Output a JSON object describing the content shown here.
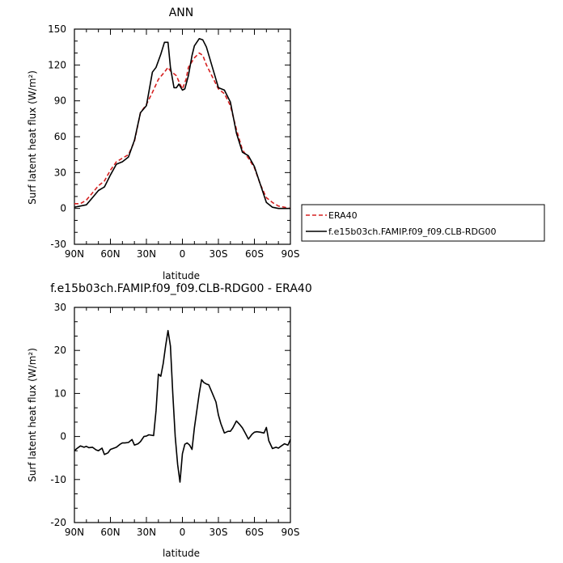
{
  "chart_data": [
    {
      "type": "line",
      "title": "ANN",
      "xlabel": "latitude",
      "ylabel": "Surf latent heat flux (W/m²)",
      "xlim": [
        90,
        -90
      ],
      "ylim": [
        -30,
        150
      ],
      "yticks": [
        -30,
        0,
        30,
        60,
        90,
        120,
        150
      ],
      "xticks": [
        90,
        60,
        30,
        0,
        -30,
        -60,
        -90
      ],
      "xticklabels": [
        "90N",
        "60N",
        "30N",
        "0",
        "30S",
        "60S",
        "90S"
      ],
      "legend_placement": "right",
      "series": [
        {
          "name": "ERA40",
          "color": "#d62020",
          "style": "dashed",
          "x": [
            90,
            85,
            80,
            75,
            70,
            65,
            60,
            55,
            50,
            45,
            40,
            35,
            30,
            25,
            20,
            15,
            12,
            10,
            5,
            2,
            0,
            -3,
            -5,
            -10,
            -14,
            -17,
            -20,
            -25,
            -30,
            -35,
            -40,
            -45,
            -50,
            -55,
            -60,
            -65,
            -70,
            -75,
            -80,
            -85,
            -90
          ],
          "y": [
            4,
            4,
            7,
            13,
            19,
            23,
            32,
            39,
            42,
            45,
            56,
            80,
            87,
            97,
            108,
            114,
            118,
            115,
            111,
            104,
            100,
            108,
            118,
            126,
            130,
            128,
            120,
            110,
            100,
            96,
            86,
            66,
            49,
            42,
            34,
            20,
            9,
            5,
            2,
            1,
            0
          ]
        },
        {
          "name": "f.e15b03ch.FAMIP.f09_f09.CLB-RDG00",
          "color": "#000000",
          "style": "solid",
          "x": [
            90,
            85,
            80,
            75,
            70,
            65,
            60,
            55,
            50,
            45,
            40,
            35,
            30,
            25,
            22,
            18,
            15,
            12,
            10,
            7,
            5,
            3,
            0,
            -2,
            -5,
            -8,
            -10,
            -14,
            -17,
            -20,
            -25,
            -30,
            -35,
            -40,
            -45,
            -50,
            -55,
            -60,
            -65,
            -70,
            -75,
            -80,
            -85,
            -90
          ],
          "y": [
            1,
            2,
            3,
            9,
            15,
            18,
            28,
            37,
            39,
            43,
            57,
            80,
            86,
            114,
            118,
            129,
            139,
            139,
            118,
            101,
            101,
            104,
            99,
            100,
            111,
            128,
            136,
            142,
            141,
            135,
            118,
            101,
            99,
            89,
            63,
            47,
            44,
            35,
            20,
            5,
            1,
            0,
            0,
            0
          ]
        }
      ]
    },
    {
      "type": "line",
      "title": "f.e15b03ch.FAMIP.f09_f09.CLB-RDG00 - ERA40",
      "xlabel": "latitude",
      "ylabel": "Surf latent heat flux (W/m²)",
      "xlim": [
        90,
        -90
      ],
      "ylim": [
        -20,
        30
      ],
      "yticks": [
        -20,
        -10,
        0,
        10,
        20,
        30
      ],
      "xticks": [
        90,
        60,
        30,
        0,
        -30,
        -60,
        -90
      ],
      "xticklabels": [
        "90N",
        "60N",
        "30N",
        "0",
        "30S",
        "60S",
        "90S"
      ],
      "series": [
        {
          "color": "#000000",
          "style": "solid",
          "x": [
            90,
            88,
            85,
            82,
            80,
            78,
            75,
            72,
            70,
            67,
            65,
            62,
            60,
            55,
            52,
            50,
            48,
            45,
            42,
            40,
            37,
            35,
            32,
            30,
            28,
            26,
            24,
            22,
            20,
            18,
            16,
            14,
            12,
            10,
            8,
            6,
            4,
            2,
            0,
            -2,
            -4,
            -6,
            -8,
            -10,
            -12,
            -14,
            -16,
            -18,
            -20,
            -22,
            -25,
            -28,
            -30,
            -32,
            -35,
            -38,
            -40,
            -42,
            -45,
            -48,
            -50,
            -52,
            -55,
            -58,
            -60,
            -62,
            -65,
            -68,
            -70,
            -72,
            -75,
            -78,
            -80,
            -82,
            -85,
            -88,
            -90
          ],
          "y": [
            -3.3,
            -2.8,
            -2.2,
            -2.5,
            -2.3,
            -2.6,
            -2.5,
            -3.1,
            -3.3,
            -2.7,
            -4.2,
            -3.8,
            -3.0,
            -2.5,
            -1.8,
            -1.5,
            -1.5,
            -1.4,
            -0.7,
            -2.0,
            -1.7,
            -1.2,
            0.0,
            0.1,
            0.4,
            0.3,
            0.2,
            6.0,
            14.5,
            14.0,
            17.0,
            21.0,
            24.6,
            21.0,
            10.0,
            0.0,
            -6.5,
            -10.6,
            -4.0,
            -1.8,
            -1.5,
            -2.0,
            -3.0,
            2.0,
            6.0,
            10.0,
            13.2,
            12.5,
            12.2,
            12.0,
            10.0,
            8.0,
            5.0,
            3.0,
            0.8,
            1.2,
            1.2,
            2.0,
            3.6,
            2.7,
            2.0,
            1.0,
            -0.6,
            0.5,
            1.0,
            1.1,
            1.0,
            0.8,
            2.1,
            -1.0,
            -2.8,
            -2.5,
            -2.7,
            -2.3,
            -1.7,
            -2.0,
            -0.7
          ]
        }
      ]
    }
  ]
}
